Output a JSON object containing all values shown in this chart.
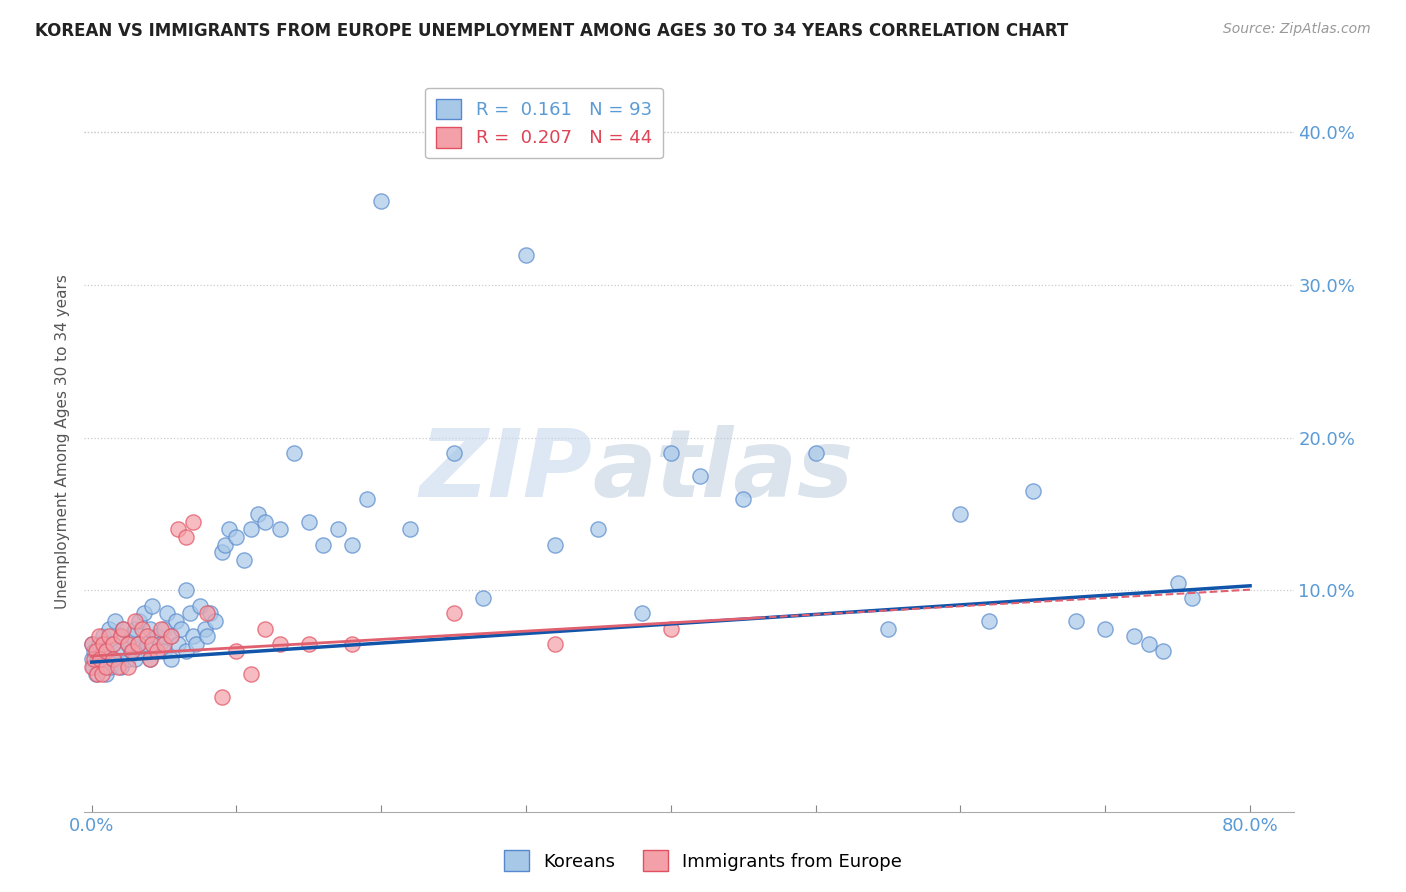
{
  "title": "KOREAN VS IMMIGRANTS FROM EUROPE UNEMPLOYMENT AMONG AGES 30 TO 34 YEARS CORRELATION CHART",
  "source": "Source: ZipAtlas.com",
  "xlabel": "",
  "ylabel": "Unemployment Among Ages 30 to 34 years",
  "xlim": [
    -0.005,
    0.83
  ],
  "ylim": [
    -0.045,
    0.44
  ],
  "yticks": [
    0.0,
    0.1,
    0.2,
    0.3,
    0.4
  ],
  "ytick_labels": [
    "",
    "10.0%",
    "20.0%",
    "30.0%",
    "40.0%"
  ],
  "xticks": [
    0.0,
    0.1,
    0.2,
    0.3,
    0.4,
    0.5,
    0.6,
    0.7,
    0.8
  ],
  "xtick_labels_show": [
    "0.0%",
    "",
    "",
    "",
    "",
    "",
    "",
    "",
    "80.0%"
  ],
  "series1_color": "#a8c8e8",
  "series2_color": "#f4a0a8",
  "series1_edge": "#5588cc",
  "series2_edge": "#e05060",
  "trend1_color": "#1155aa",
  "trend2_color": "#e06070",
  "R1": 0.161,
  "N1": 93,
  "R2": 0.207,
  "N2": 44,
  "label1": "Koreans",
  "label2": "Immigrants from Europe",
  "title_color": "#333333",
  "axis_color": "#5b9bd5",
  "grid_color": "#cccccc",
  "watermark_zip": "ZIP",
  "watermark_atlas": "atlas",
  "trend1_x0": 0.0,
  "trend1_y0": 0.053,
  "trend1_x1": 0.8,
  "trend1_y1": 0.103,
  "trend2_x0": 0.0,
  "trend2_y0": 0.057,
  "trend2_x1": 0.46,
  "trend2_y1": 0.082,
  "korean_x": [
    0.0,
    0.0,
    0.001,
    0.002,
    0.003,
    0.004,
    0.005,
    0.006,
    0.007,
    0.008,
    0.01,
    0.01,
    0.012,
    0.013,
    0.015,
    0.015,
    0.016,
    0.018,
    0.02,
    0.02,
    0.022,
    0.025,
    0.025,
    0.027,
    0.028,
    0.03,
    0.03,
    0.032,
    0.033,
    0.035,
    0.036,
    0.038,
    0.04,
    0.04,
    0.042,
    0.045,
    0.047,
    0.05,
    0.05,
    0.052,
    0.055,
    0.055,
    0.058,
    0.06,
    0.062,
    0.065,
    0.065,
    0.068,
    0.07,
    0.072,
    0.075,
    0.078,
    0.08,
    0.082,
    0.085,
    0.09,
    0.092,
    0.095,
    0.1,
    0.105,
    0.11,
    0.115,
    0.12,
    0.13,
    0.14,
    0.15,
    0.16,
    0.17,
    0.18,
    0.19,
    0.2,
    0.22,
    0.25,
    0.27,
    0.3,
    0.32,
    0.35,
    0.38,
    0.4,
    0.42,
    0.45,
    0.5,
    0.55,
    0.6,
    0.62,
    0.65,
    0.68,
    0.7,
    0.72,
    0.73,
    0.74,
    0.75,
    0.76
  ],
  "korean_y": [
    0.065,
    0.055,
    0.05,
    0.06,
    0.045,
    0.055,
    0.065,
    0.05,
    0.058,
    0.07,
    0.06,
    0.045,
    0.075,
    0.05,
    0.065,
    0.055,
    0.08,
    0.06,
    0.07,
    0.05,
    0.075,
    0.065,
    0.055,
    0.06,
    0.07,
    0.075,
    0.055,
    0.065,
    0.08,
    0.06,
    0.085,
    0.065,
    0.075,
    0.055,
    0.09,
    0.07,
    0.065,
    0.075,
    0.06,
    0.085,
    0.07,
    0.055,
    0.08,
    0.065,
    0.075,
    0.1,
    0.06,
    0.085,
    0.07,
    0.065,
    0.09,
    0.075,
    0.07,
    0.085,
    0.08,
    0.125,
    0.13,
    0.14,
    0.135,
    0.12,
    0.14,
    0.15,
    0.145,
    0.14,
    0.19,
    0.145,
    0.13,
    0.14,
    0.13,
    0.16,
    0.355,
    0.14,
    0.19,
    0.095,
    0.32,
    0.13,
    0.14,
    0.085,
    0.19,
    0.175,
    0.16,
    0.19,
    0.075,
    0.15,
    0.08,
    0.165,
    0.08,
    0.075,
    0.07,
    0.065,
    0.06,
    0.105,
    0.095
  ],
  "europe_x": [
    0.0,
    0.0,
    0.002,
    0.003,
    0.004,
    0.005,
    0.006,
    0.007,
    0.008,
    0.01,
    0.01,
    0.012,
    0.015,
    0.015,
    0.018,
    0.02,
    0.022,
    0.025,
    0.025,
    0.028,
    0.03,
    0.032,
    0.035,
    0.038,
    0.04,
    0.042,
    0.045,
    0.048,
    0.05,
    0.055,
    0.06,
    0.065,
    0.07,
    0.08,
    0.09,
    0.1,
    0.11,
    0.12,
    0.13,
    0.15,
    0.18,
    0.25,
    0.32,
    0.4
  ],
  "europe_y": [
    0.065,
    0.05,
    0.055,
    0.06,
    0.045,
    0.07,
    0.055,
    0.045,
    0.065,
    0.06,
    0.05,
    0.07,
    0.065,
    0.055,
    0.05,
    0.07,
    0.075,
    0.065,
    0.05,
    0.06,
    0.08,
    0.065,
    0.075,
    0.07,
    0.055,
    0.065,
    0.06,
    0.075,
    0.065,
    0.07,
    0.14,
    0.135,
    0.145,
    0.085,
    0.03,
    0.06,
    0.045,
    0.075,
    0.065,
    0.065,
    0.065,
    0.085,
    0.065,
    0.075
  ]
}
